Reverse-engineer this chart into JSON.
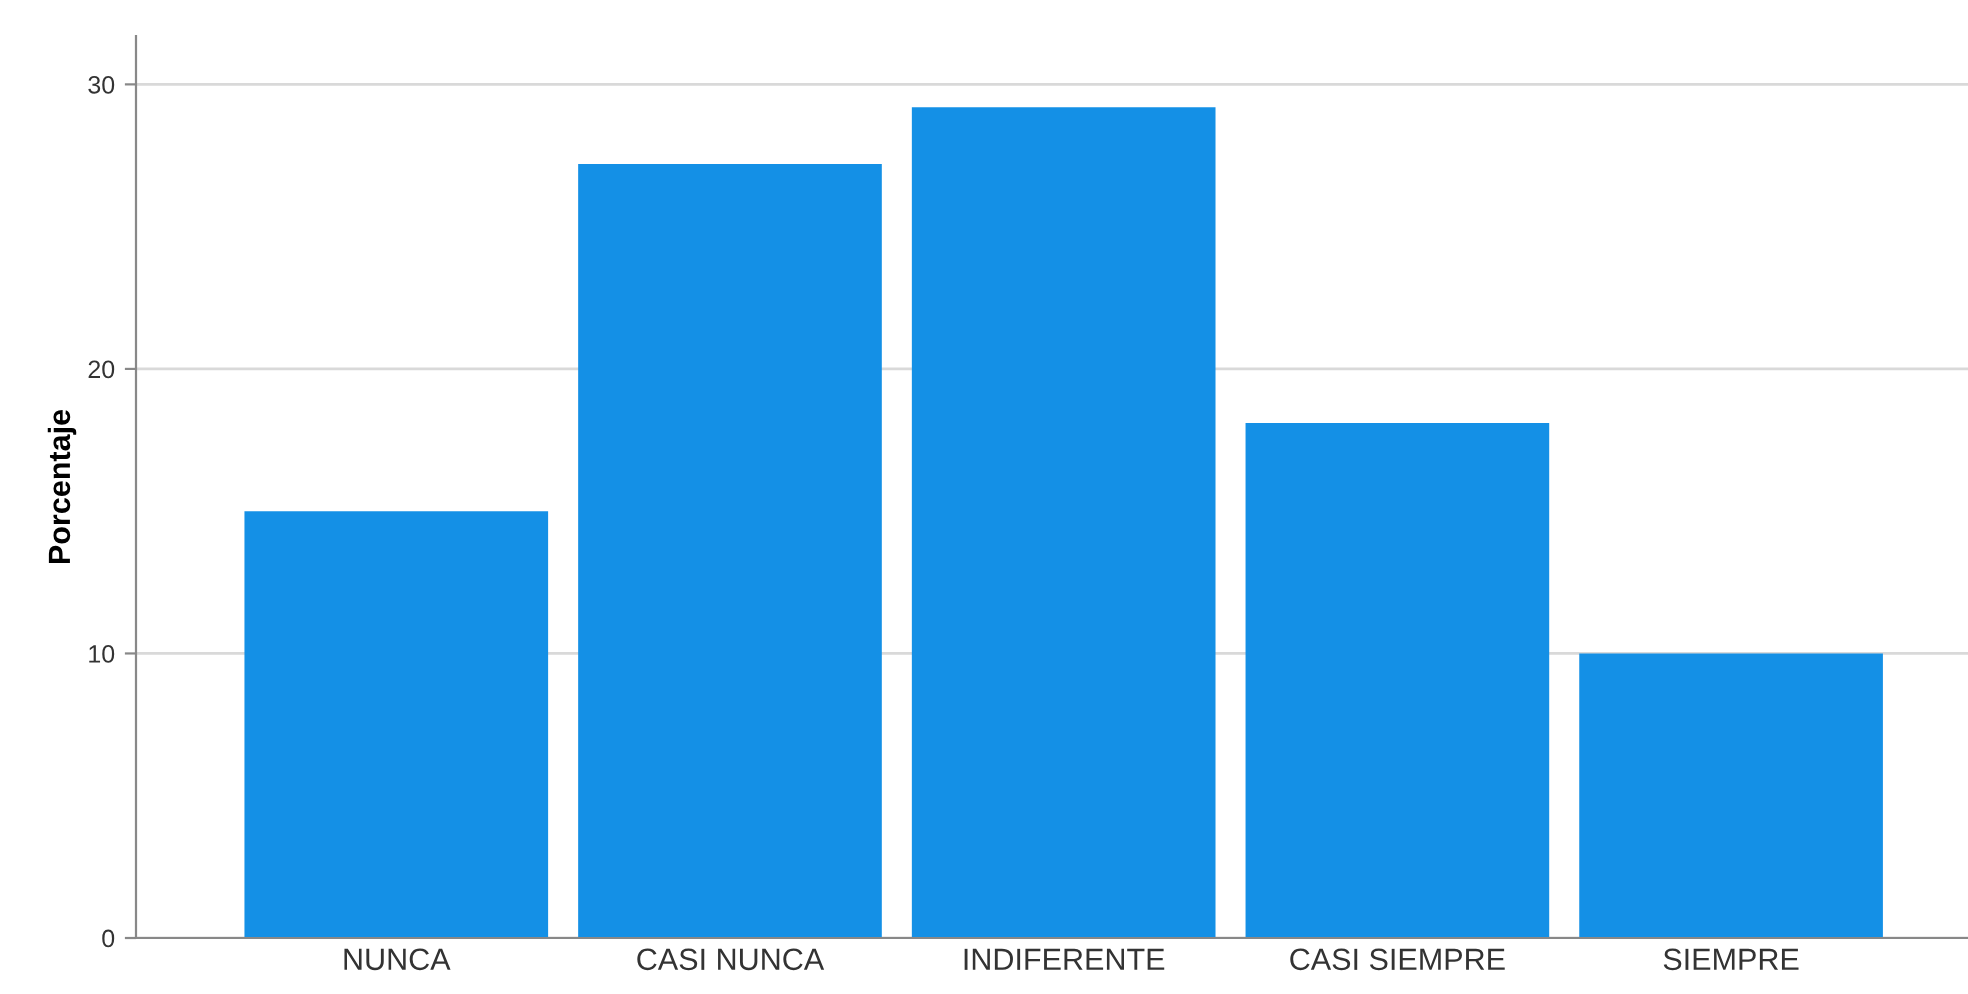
{
  "chart_data": {
    "type": "bar",
    "ylabel": "Porcentaje",
    "categories": [
      "NUNCA",
      "CASI NUNCA",
      "INDIFERENTE",
      "CASI SIEMPRE",
      "SIEMPRE"
    ],
    "values": [
      15.0,
      27.2,
      29.2,
      18.1,
      10.0
    ],
    "color": "#1490e6",
    "ylim": [
      0,
      31.7
    ],
    "yticks": [
      0,
      10,
      20,
      30
    ],
    "grid": "y"
  }
}
